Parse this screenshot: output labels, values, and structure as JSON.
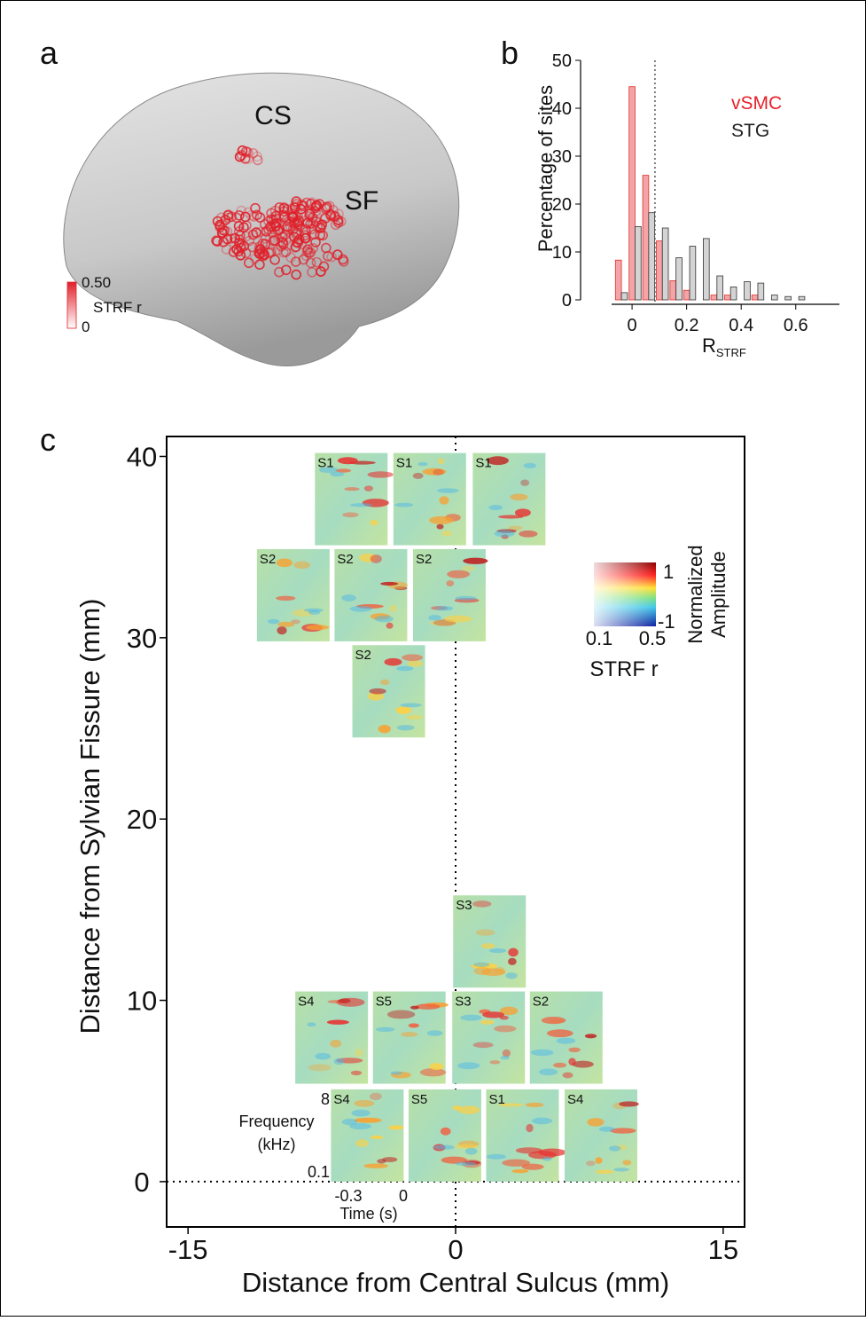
{
  "panel_labels": [
    "a",
    "b",
    "c"
  ],
  "panel_a": {
    "annotations": [
      "CS",
      "SF"
    ],
    "colorbar": {
      "ticks": [
        {
          "value": 0.5,
          "label": "0.50"
        },
        0
      ],
      "label": "STRF r",
      "color": "#e0202a"
    }
  },
  "chart_data": [
    {
      "type": "bar",
      "ylabel": "Percentage of sites",
      "xlabel": "R",
      "xlabel_sub": "STRF",
      "x": [
        -0.05,
        0,
        0.05,
        0.1,
        0.15,
        0.2,
        0.25,
        0.3,
        0.35,
        0.4,
        0.45,
        0.5,
        0.55,
        0.6
      ],
      "series": [
        {
          "name": "vSMC",
          "color": "#f4a3a6",
          "edge": "#e0302a",
          "label_color": "#e8202a",
          "values": [
            8.3,
            44.5,
            26,
            12.3,
            4,
            2,
            0,
            1,
            1,
            0,
            1,
            0,
            0,
            0
          ]
        },
        {
          "name": "STG",
          "color": "#d4d4d4",
          "edge": "#333333",
          "label_color": "#222222",
          "values": [
            1.5,
            15.3,
            18.2,
            15,
            8.8,
            11.2,
            12.8,
            5,
            2.7,
            3.8,
            3.5,
            1,
            0.7,
            0.7
          ]
        }
      ],
      "xlim": [
        -0.075,
        0.76
      ],
      "ylim": [
        0,
        50
      ],
      "xticks": [
        0,
        0.2,
        0.4,
        0.6
      ],
      "yticks": [
        0,
        10,
        20,
        30,
        40,
        50
      ],
      "vline": 0.084
    },
    {
      "type": "tiles",
      "xlabel": "Distance from Central Sulcus (mm)",
      "ylabel": "Distance from Sylvian Fissure (mm)",
      "xlim": [
        -16.2,
        16.2
      ],
      "ylim": [
        -2.5,
        41.1
      ],
      "xticks": [
        -15,
        0,
        15
      ],
      "yticks": [
        0,
        10,
        20,
        30,
        40
      ],
      "tiles": {
        "labels": [
          "S1",
          "S1",
          "S1",
          "S2",
          "S2",
          "S2",
          "S2",
          "S3",
          "S4",
          "S5",
          "S3",
          "S2",
          "S4",
          "S5",
          "S1",
          "S4"
        ],
        "x": [
          -5.85,
          -1.45,
          3.0,
          -9.1,
          -4.75,
          -0.35,
          -3.75,
          1.9,
          -6.95,
          -2.6,
          1.85,
          6.2,
          -4.95,
          -0.6,
          3.75,
          8.15
        ],
        "y": [
          35.1,
          35.1,
          35.1,
          29.8,
          29.8,
          29.8,
          24.5,
          10.7,
          5.4,
          5.4,
          5.4,
          5.4,
          0,
          0,
          0,
          0
        ]
      },
      "colorbar": {
        "ticks": [
          1,
          -1
        ],
        "label": [
          "Normalized",
          "Amplitude"
        ],
        "r_ticks": [
          0.1,
          0.5
        ],
        "r_label": "STRF r"
      },
      "inset": {
        "freq_ticks": [
          8,
          0.1
        ],
        "freq_label": [
          "Frequency",
          "(kHz)"
        ],
        "time_ticks": [
          -0.3,
          0
        ],
        "time_label": "Time (s)"
      }
    }
  ]
}
